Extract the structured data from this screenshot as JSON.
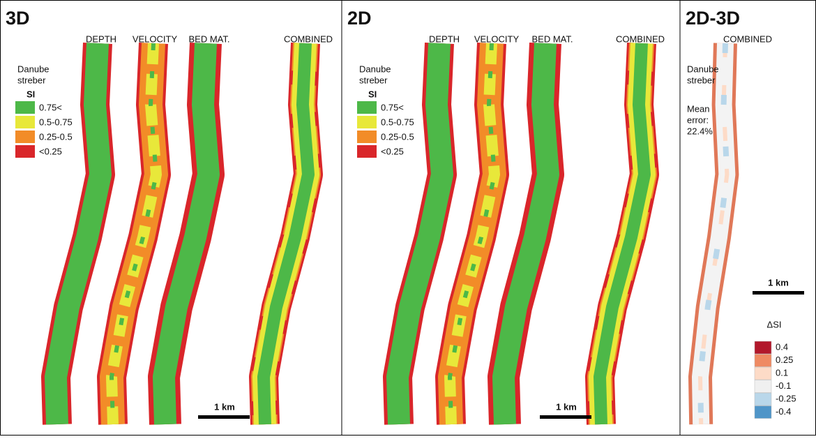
{
  "panels": [
    {
      "title": "3D",
      "columns": [
        "DEPTH",
        "VELOCITY",
        "BED MAT.",
        "COMBINED"
      ],
      "site": [
        "Danube",
        "streber"
      ],
      "legend": {
        "title": "SI",
        "items": [
          {
            "label": "0.75<",
            "color": "#4db848"
          },
          {
            "label": "0.5-0.75",
            "color": "#e8e83a"
          },
          {
            "label": "0.25-0.5",
            "color": "#f28c28"
          },
          {
            "label": "<0.25",
            "color": "#d9262a"
          }
        ]
      },
      "scale": "1 km"
    },
    {
      "title": "2D",
      "columns": [
        "DEPTH",
        "VELOCITY",
        "BED MAT.",
        "COMBINED"
      ],
      "site": [
        "Danube",
        "streber"
      ],
      "legend": {
        "title": "SI",
        "items": [
          {
            "label": "0.75<",
            "color": "#4db848"
          },
          {
            "label": "0.5-0.75",
            "color": "#e8e83a"
          },
          {
            "label": "0.25-0.5",
            "color": "#f28c28"
          },
          {
            "label": "<0.25",
            "color": "#d9262a"
          }
        ]
      },
      "scale": "1 km"
    },
    {
      "title": "2D-3D",
      "columns": [
        "COMBINED"
      ],
      "site": [
        "Danube",
        "streber"
      ],
      "note": [
        "Mean",
        "error:",
        "22.4%"
      ],
      "legend": {
        "title": "ΔSI",
        "items": [
          {
            "label": "0.4",
            "color": "#b2182b"
          },
          {
            "label": "0.25",
            "color": "#ef8a62"
          },
          {
            "label": "0.1",
            "color": "#fddbc7"
          },
          {
            "label": "-0.1",
            "color": "#f0f0f0"
          },
          {
            "label": "-0.25",
            "color": "#b9d7ea"
          },
          {
            "label": "-0.4",
            "color": "#4f95c8"
          }
        ]
      },
      "scale": "1 km"
    }
  ]
}
